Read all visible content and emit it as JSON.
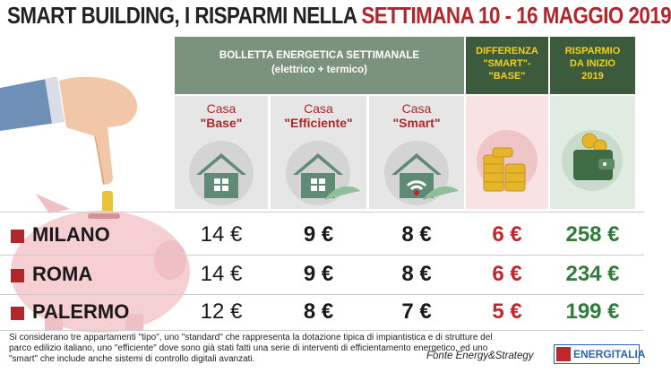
{
  "title": {
    "part1": "SMART BUILDING, I RISPARMI NELLA ",
    "part2": "SETTIMANA 10 - 16 MAGGIO 2019"
  },
  "header": {
    "bolletta_line1": "BOLLETTA ENERGETICA SETTIMANALE",
    "bolletta_line2": "(elettrico + termico)",
    "diff_line1": "DIFFERENZA",
    "diff_line2": "\"SMART\"-",
    "diff_line3": "\"BASE\"",
    "ris_line1": "RISPARMIO",
    "ris_line2": "DA INIZIO",
    "ris_line3": "2019"
  },
  "columns": {
    "base": {
      "line1": "Casa",
      "line2": "\"Base\""
    },
    "efficiente": {
      "line1": "Casa",
      "line2": "\"Efficiente\""
    },
    "smart": {
      "line1": "Casa",
      "line2": "\"Smart\""
    }
  },
  "rows": [
    {
      "city": "MILANO",
      "base": "14 €",
      "efficiente": "9 €",
      "smart": "8 €",
      "diff": "6 €",
      "risparmio": "258 €"
    },
    {
      "city": "ROMA",
      "base": "14 €",
      "efficiente": "9 €",
      "smart": "8 €",
      "diff": "6 €",
      "risparmio": "234 €"
    },
    {
      "city": "PALERMO",
      "base": "12 €",
      "efficiente": "8 €",
      "smart": "7 €",
      "diff": "5 €",
      "risparmio": "199 €"
    }
  ],
  "footnote": "Si considerano tre appartamenti \"tipo\", uno \"standard\" che rappresenta la dotazione tipica di impiantistica e di strutture del parco edilizio italiano, uno \"efficiente\" dove sono già stati fatti una serie di interventi di efficientamento energetico, ed uno \"smart\" che include anche sistemi di controllo digitali avanzati.",
  "source": "Fonte Energy&Strategy",
  "logo": {
    "text": "ENERGITALIA"
  },
  "colors": {
    "accent_red": "#b1262b",
    "header_green": "#3c5b3c",
    "gold": "#f2d11b",
    "value_green": "#2f7d3b"
  }
}
